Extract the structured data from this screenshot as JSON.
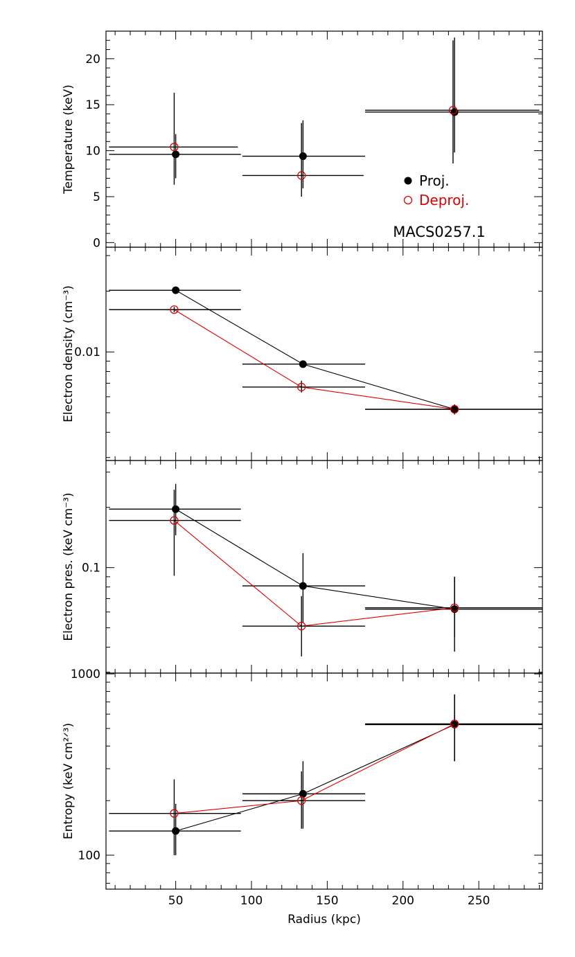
{
  "chart_data": {
    "type": "scatter",
    "annotation": "MACS0257.1",
    "xlabel": "Radius (kpc)",
    "xlim": [
      4,
      292
    ],
    "xticks": [
      50,
      100,
      150,
      200,
      250
    ],
    "xtick_labels": [
      "50",
      "100",
      "150",
      "200",
      "250"
    ],
    "legend": {
      "placement": "right",
      "entries": [
        "Proj.",
        "Deproj."
      ]
    },
    "colors": {
      "proj": "#000000",
      "deproj": "#e00000"
    },
    "panels": [
      {
        "id": "temperature",
        "ylabel": "Temperature (keV)",
        "scale": "linear",
        "ylim": [
          -0.5,
          23
        ],
        "yticks": [
          0,
          5,
          10,
          15,
          20
        ],
        "ytick_labels": [
          "0",
          "5",
          "10",
          "15",
          "20"
        ],
        "connect": false,
        "series": [
          {
            "name": "Proj.",
            "marker": "filled",
            "color": "#000000",
            "points": [
              {
                "x": 50,
                "xlo": 6,
                "xhi": 93,
                "y": 9.6,
                "ylo": 7.0,
                "yhi": 11.8
              },
              {
                "x": 134,
                "xlo": 94,
                "xhi": 175,
                "y": 9.4,
                "ylo": 5.9,
                "yhi": 13.3
              },
              {
                "x": 234,
                "xlo": 175,
                "xhi": 292,
                "y": 14.2,
                "ylo": 9.8,
                "yhi": 22.3
              }
            ]
          },
          {
            "name": "Deproj.",
            "marker": "open",
            "color": "#e00000",
            "points": [
              {
                "x": 49,
                "xlo": 6,
                "xhi": 91,
                "y": 10.4,
                "ylo": 6.3,
                "yhi": 16.3
              },
              {
                "x": 133,
                "xlo": 94,
                "xhi": 174,
                "y": 7.3,
                "ylo": 5.0,
                "yhi": 13.0
              },
              {
                "x": 233,
                "xlo": 175,
                "xhi": 290,
                "y": 14.4,
                "ylo": 8.6,
                "yhi": 22.0
              }
            ]
          }
        ]
      },
      {
        "id": "density",
        "ylabel": "Electron density (cm⁻³)",
        "scale": "log",
        "ylim": [
          0.0029,
          0.033
        ],
        "yticks": [
          0.01
        ],
        "ytick_labels": [
          "0.01"
        ],
        "connect": true,
        "series": [
          {
            "name": "Proj.",
            "marker": "filled",
            "color": "#000000",
            "points": [
              {
                "x": 50,
                "xlo": 6,
                "xhi": 93,
                "y": 0.0202,
                "ylo": 0.0199,
                "yhi": 0.0205
              },
              {
                "x": 134,
                "xlo": 94,
                "xhi": 175,
                "y": 0.0087,
                "ylo": 0.0084,
                "yhi": 0.009
              },
              {
                "x": 234,
                "xlo": 175,
                "xhi": 292,
                "y": 0.0052,
                "ylo": 0.005,
                "yhi": 0.0054
              }
            ]
          },
          {
            "name": "Deproj.",
            "marker": "open",
            "color": "#e00000",
            "points": [
              {
                "x": 49,
                "xlo": 6,
                "xhi": 93,
                "y": 0.0162,
                "ylo": 0.0157,
                "yhi": 0.0167
              },
              {
                "x": 133,
                "xlo": 94,
                "xhi": 175,
                "y": 0.0067,
                "ylo": 0.0063,
                "yhi": 0.0072
              },
              {
                "x": 234,
                "xlo": 175,
                "xhi": 292,
                "y": 0.0052,
                "ylo": 0.0049,
                "yhi": 0.0055
              }
            ]
          }
        ]
      },
      {
        "id": "pressure",
        "ylabel": "Electron pres. (keV cm⁻³)",
        "scale": "log",
        "ylim": [
          0.0297,
          0.343
        ],
        "yticks": [
          0.1
        ],
        "ytick_labels": [
          "0.1"
        ],
        "connect": true,
        "series": [
          {
            "name": "Proj.",
            "marker": "filled",
            "color": "#000000",
            "points": [
              {
                "x": 50,
                "xlo": 6,
                "xhi": 93,
                "y": 0.196,
                "ylo": 0.145,
                "yhi": 0.262
              },
              {
                "x": 134,
                "xlo": 94,
                "xhi": 175,
                "y": 0.081,
                "ylo": 0.053,
                "yhi": 0.118
              },
              {
                "x": 234,
                "xlo": 175,
                "xhi": 292,
                "y": 0.062,
                "ylo": 0.038,
                "yhi": 0.09
              }
            ]
          },
          {
            "name": "Deproj.",
            "marker": "open",
            "color": "#e00000",
            "points": [
              {
                "x": 49,
                "xlo": 6,
                "xhi": 93,
                "y": 0.172,
                "ylo": 0.091,
                "yhi": 0.245
              },
              {
                "x": 133,
                "xlo": 94,
                "xhi": 175,
                "y": 0.051,
                "ylo": 0.036,
                "yhi": 0.072
              },
              {
                "x": 234,
                "xlo": 175,
                "xhi": 292,
                "y": 0.063,
                "ylo": 0.045,
                "yhi": 0.09
              }
            ]
          }
        ]
      },
      {
        "id": "entropy",
        "ylabel": "Entropy (keV cm²ᐟ³)",
        "scale": "log",
        "ylim": [
          65,
          1010
        ],
        "yticks": [
          100,
          1000
        ],
        "ytick_labels": [
          "100",
          "1000"
        ],
        "connect": true,
        "series": [
          {
            "name": "Proj.",
            "marker": "filled",
            "color": "#000000",
            "points": [
              {
                "x": 50,
                "xlo": 6,
                "xhi": 93,
                "y": 136,
                "ylo": 100,
                "yhi": 192
              },
              {
                "x": 134,
                "xlo": 94,
                "xhi": 175,
                "y": 218,
                "ylo": 140,
                "yhi": 330
              },
              {
                "x": 234,
                "xlo": 175,
                "xhi": 292,
                "y": 525,
                "ylo": 330,
                "yhi": 770
              }
            ]
          },
          {
            "name": "Deproj.",
            "marker": "open",
            "color": "#e00000",
            "points": [
              {
                "x": 49,
                "xlo": 6,
                "xhi": 93,
                "y": 170,
                "ylo": 100,
                "yhi": 262
              },
              {
                "x": 133,
                "xlo": 94,
                "xhi": 175,
                "y": 200,
                "ylo": 140,
                "yhi": 290
              },
              {
                "x": 234,
                "xlo": 175,
                "xhi": 292,
                "y": 530,
                "ylo": 330,
                "yhi": 770
              }
            ]
          }
        ]
      }
    ]
  }
}
